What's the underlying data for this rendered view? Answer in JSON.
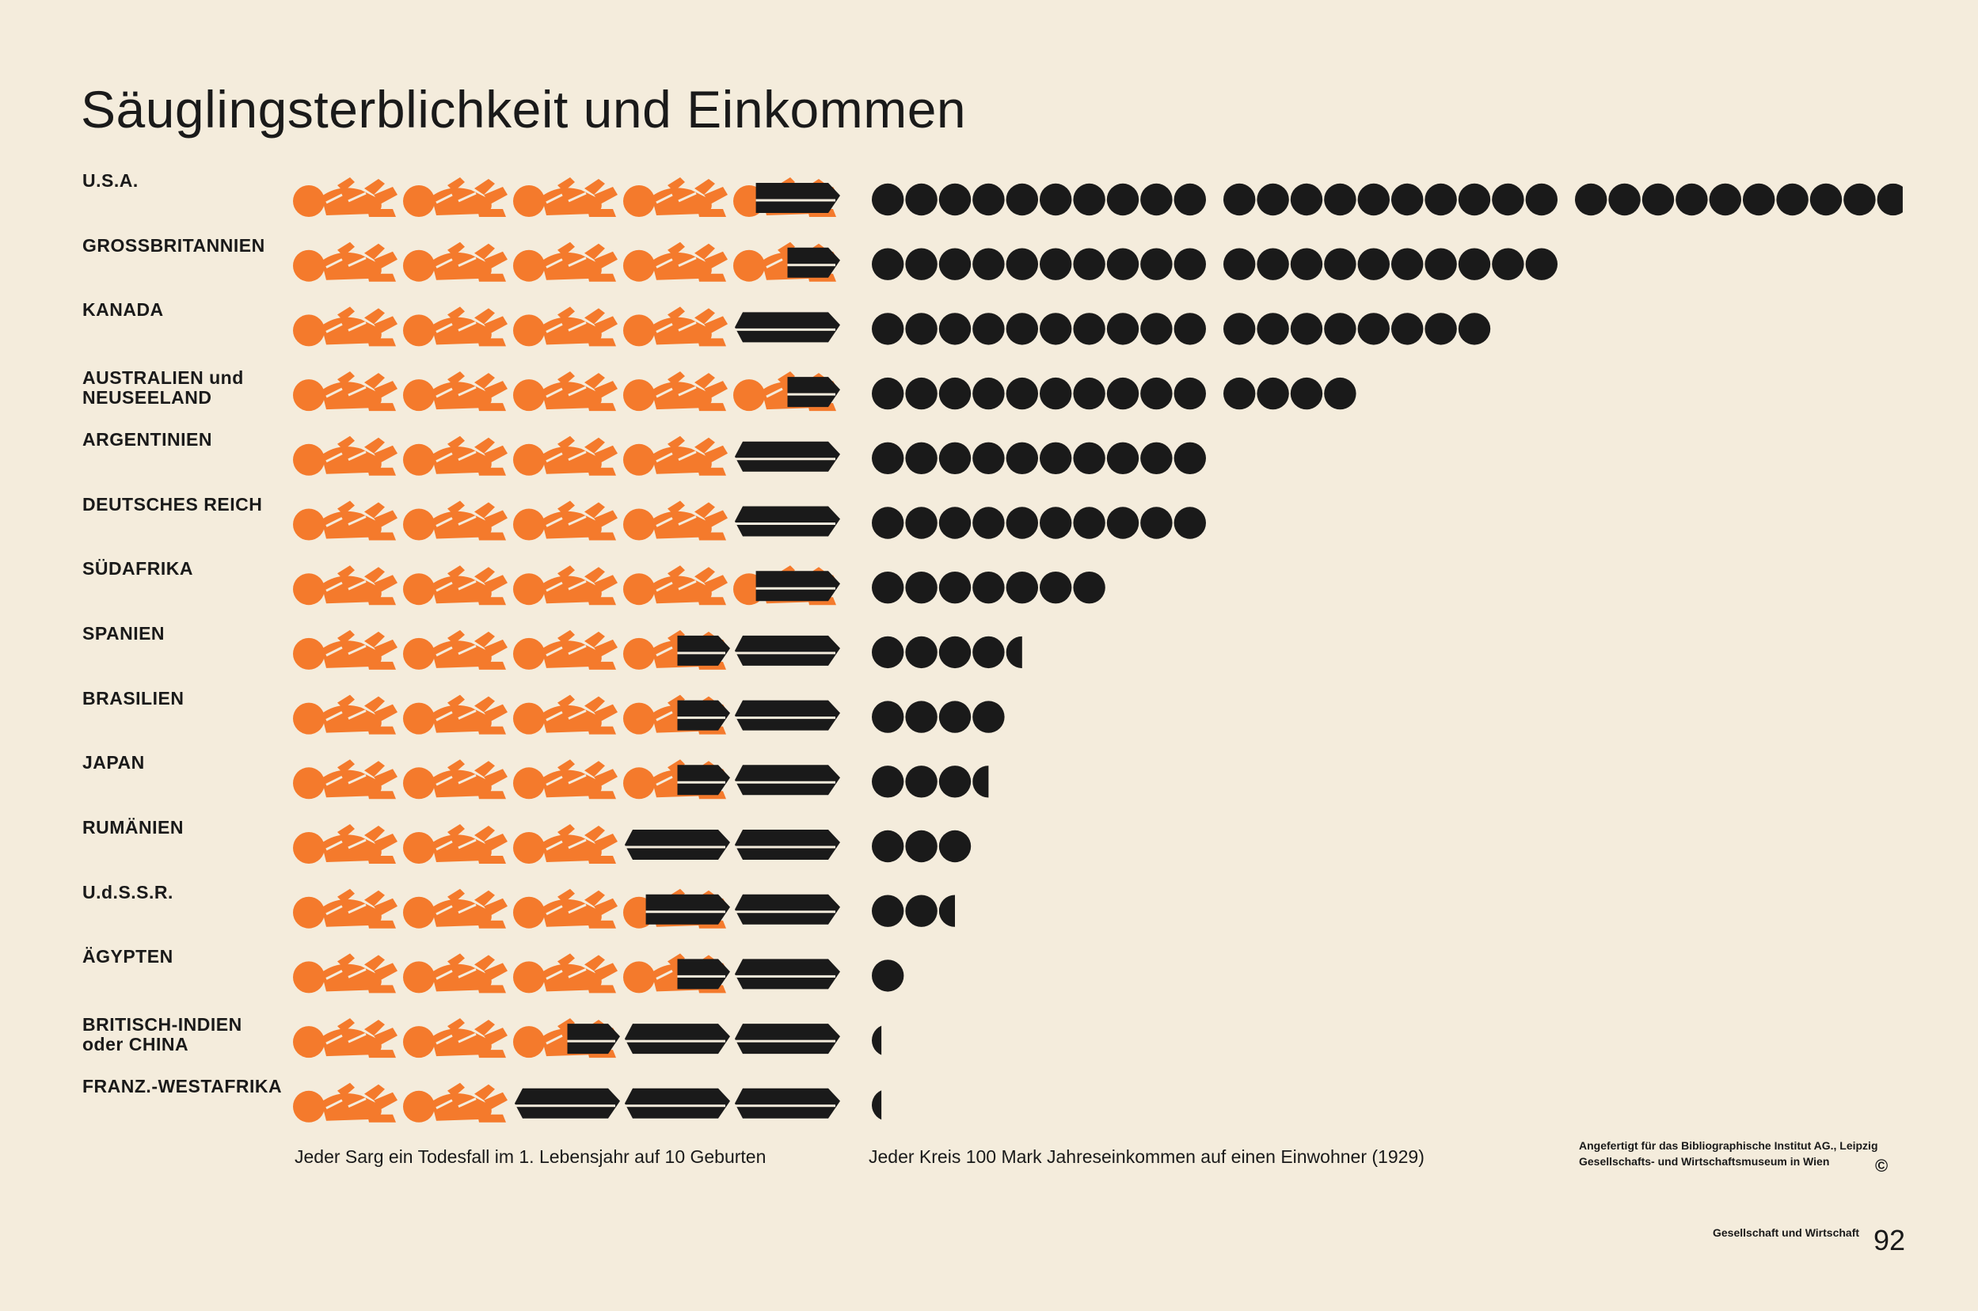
{
  "title": "Säuglingsterblichkeit und Einkommen",
  "captions": {
    "mortality": "Jeder Sarg ein Todesfall im 1. Lebensjahr auf 10 Geburten",
    "income": "Jeder Kreis 100 Mark Jahreseinkommen auf einen Einwohner (1929)"
  },
  "credit": {
    "line1": "Angefertigt für das Bibliographische Institut AG., Leipzig",
    "line2": "Gesellschafts- und Wirtschaftsmuseum in Wien",
    "copyright": "©"
  },
  "footer": {
    "series": "Gesellschaft und Wirtschaft",
    "page_number": "92"
  },
  "colors": {
    "background": "#f4ecdc",
    "infant": "#f47a2c",
    "coffin": "#1a1a1a",
    "coin": "#1a1a1a"
  },
  "icons": {
    "infant": "infant-icon",
    "coffin": "coffin-icon",
    "coin": "coin-icon"
  },
  "chart_data": {
    "type": "pictogram",
    "title": "Säuglingsterblichkeit und Einkommen",
    "units": {
      "coffins": "Jeder Sarg ein Todesfall im 1. Lebensjahr auf 10 Geburten",
      "coins": "Jeder Kreis 100 Mark Jahreseinkommen auf einen Einwohner (1929)"
    },
    "rows": [
      {
        "country": "U.S.A.",
        "coffins": 0.8,
        "coins": 29.8
      },
      {
        "country": "GROSSBRITANNIEN",
        "coffins": 0.5,
        "coins": 20.0
      },
      {
        "country": "KANADA",
        "coffins": 1.0,
        "coins": 18.0
      },
      {
        "country": "AUSTRALIEN und\nNEUSEELAND",
        "coffins": 0.5,
        "coins": 14.0
      },
      {
        "country": "ARGENTINIEN",
        "coffins": 1.0,
        "coins": 10.0
      },
      {
        "country": "DEUTSCHES REICH",
        "coffins": 1.0,
        "coins": 10.0
      },
      {
        "country": "SÜDAFRIKA",
        "coffins": 0.8,
        "coins": 7.0
      },
      {
        "country": "SPANIEN",
        "coffins": 1.5,
        "coins": 4.5
      },
      {
        "country": "BRASILIEN",
        "coffins": 1.5,
        "coins": 4.0
      },
      {
        "country": "JAPAN",
        "coffins": 1.5,
        "coins": 3.5
      },
      {
        "country": "RUMÄNIEN",
        "coffins": 2.0,
        "coins": 3.0
      },
      {
        "country": "U.d.S.S.R.",
        "coffins": 1.8,
        "coins": 2.5
      },
      {
        "country": "ÄGYPTEN",
        "coffins": 1.5,
        "coins": 1.0
      },
      {
        "country": "BRITISCH-INDIEN\noder CHINA",
        "coffins": 2.5,
        "coins": 0.3
      },
      {
        "country": "FRANZ.-WESTAFRIKA",
        "coffins": 3.0,
        "coins": 0.3
      }
    ]
  }
}
